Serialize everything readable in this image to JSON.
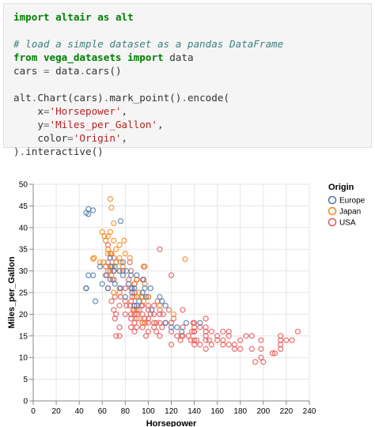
{
  "code": {
    "lines": [
      [
        {
          "t": "import",
          "c": "kw"
        },
        {
          "t": " "
        },
        {
          "t": "altair",
          "c": "kw"
        },
        {
          "t": " "
        },
        {
          "t": "as",
          "c": "kw"
        },
        {
          "t": " "
        },
        {
          "t": "alt",
          "c": "kw"
        }
      ],
      [],
      [
        {
          "t": "# load a simple dataset as a pandas DataFrame",
          "c": "cm"
        }
      ],
      [
        {
          "t": "from",
          "c": "kw"
        },
        {
          "t": " "
        },
        {
          "t": "vega_datasets",
          "c": "kw"
        },
        {
          "t": " "
        },
        {
          "t": "import",
          "c": "kw"
        },
        {
          "t": " data"
        }
      ],
      [
        {
          "t": "cars "
        },
        {
          "t": "=",
          "c": "op"
        },
        {
          "t": " data"
        },
        {
          "t": ".",
          "c": "op"
        },
        {
          "t": "cars()"
        }
      ],
      [],
      [
        {
          "t": "alt"
        },
        {
          "t": ".",
          "c": "op"
        },
        {
          "t": "Chart(cars)"
        },
        {
          "t": ".",
          "c": "op"
        },
        {
          "t": "mark_point()"
        },
        {
          "t": ".",
          "c": "op"
        },
        {
          "t": "encode("
        }
      ],
      [
        {
          "t": "    x"
        },
        {
          "t": "=",
          "c": "op"
        },
        {
          "t": "'Horsepower'",
          "c": "st"
        },
        {
          "t": ","
        }
      ],
      [
        {
          "t": "    y"
        },
        {
          "t": "=",
          "c": "op"
        },
        {
          "t": "'Miles_per_Gallon'",
          "c": "st"
        },
        {
          "t": ","
        }
      ],
      [
        {
          "t": "    color"
        },
        {
          "t": "=",
          "c": "op"
        },
        {
          "t": "'Origin'",
          "c": "st"
        },
        {
          "t": ","
        }
      ],
      [
        {
          "t": ")"
        },
        {
          "t": ".",
          "c": "op"
        },
        {
          "t": "interactive()"
        }
      ]
    ]
  },
  "chart_data": {
    "type": "scatter",
    "xlabel": "Horsepower",
    "ylabel": "Miles_per_Gallon",
    "xlim": [
      0,
      240
    ],
    "ylim": [
      0,
      50
    ],
    "xticks": [
      0,
      20,
      40,
      60,
      80,
      100,
      120,
      140,
      160,
      180,
      200,
      220,
      240
    ],
    "yticks": [
      0,
      5,
      10,
      15,
      20,
      25,
      30,
      35,
      40,
      45,
      50
    ],
    "grid": true,
    "legend": {
      "title": "Origin",
      "placement": "top-right"
    },
    "series": [
      {
        "name": "Europe",
        "color": "#4c78a8",
        "points": [
          [
            46,
            26
          ],
          [
            46,
            26
          ],
          [
            46,
            43.4
          ],
          [
            48,
            43.1
          ],
          [
            48,
            44.3
          ],
          [
            48,
            29
          ],
          [
            52,
            44
          ],
          [
            52,
            29
          ],
          [
            54,
            23
          ],
          [
            58,
            31
          ],
          [
            60,
            27
          ],
          [
            63,
            29
          ],
          [
            65,
            26
          ],
          [
            67,
            33
          ],
          [
            67,
            28
          ],
          [
            68,
            31
          ],
          [
            70,
            30
          ],
          [
            71,
            27
          ],
          [
            71,
            31
          ],
          [
            76,
            41.5
          ],
          [
            76,
            26
          ],
          [
            78,
            32
          ],
          [
            78,
            29
          ],
          [
            80,
            24
          ],
          [
            81,
            30
          ],
          [
            83,
            27
          ],
          [
            85,
            29
          ],
          [
            86,
            25
          ],
          [
            88,
            26
          ],
          [
            88,
            22
          ],
          [
            90,
            29
          ],
          [
            92,
            23
          ],
          [
            95,
            25
          ],
          [
            96,
            28
          ],
          [
            97,
            26
          ],
          [
            98,
            24
          ],
          [
            102,
            26
          ],
          [
            103,
            21
          ],
          [
            110,
            24
          ],
          [
            112,
            23
          ],
          [
            115,
            22
          ],
          [
            115,
            18
          ],
          [
            120,
            17
          ],
          [
            125,
            17
          ],
          [
            129,
            16
          ],
          [
            133,
            18
          ],
          [
            145,
            18
          ],
          [
            90,
            22
          ],
          [
            86,
            26
          ],
          [
            75,
            30
          ]
        ]
      },
      {
        "name": "Japan",
        "color": "#f58518",
        "points": [
          [
            52,
            32.8
          ],
          [
            53,
            33
          ],
          [
            58,
            32
          ],
          [
            60,
            39
          ],
          [
            61,
            32
          ],
          [
            62,
            38
          ],
          [
            63,
            37
          ],
          [
            65,
            35
          ],
          [
            65,
            38
          ],
          [
            67,
            34
          ],
          [
            67,
            46.6
          ],
          [
            67,
            39
          ],
          [
            68,
            44.6
          ],
          [
            68,
            34
          ],
          [
            68,
            29
          ],
          [
            69,
            31
          ],
          [
            70,
            37
          ],
          [
            70,
            41
          ],
          [
            72,
            32
          ],
          [
            72,
            35
          ],
          [
            75,
            33
          ],
          [
            75,
            36
          ],
          [
            75,
            30
          ],
          [
            76,
            32
          ],
          [
            78,
            31
          ],
          [
            80,
            34
          ],
          [
            84,
            33
          ],
          [
            88,
            24
          ],
          [
            88,
            27
          ],
          [
            90,
            28
          ],
          [
            92,
            25
          ],
          [
            94,
            24
          ],
          [
            95,
            24
          ],
          [
            96,
            23
          ],
          [
            97,
            31
          ],
          [
            97,
            27
          ],
          [
            100,
            24
          ],
          [
            110,
            22
          ],
          [
            122,
            20
          ],
          [
            132,
            32.7
          ],
          [
            97,
            18
          ],
          [
            75,
            25
          ],
          [
            79,
            37
          ],
          [
            65,
            34
          ],
          [
            65,
            30
          ],
          [
            67,
            31
          ],
          [
            70,
            25
          ],
          [
            88,
            21
          ],
          [
            92,
            19
          ],
          [
            72,
            32
          ]
        ]
      },
      {
        "name": "USA",
        "color": "#e45756",
        "points": [
          [
            230,
            16
          ],
          [
            225,
            14
          ],
          [
            220,
            14
          ],
          [
            215,
            14
          ],
          [
            215,
            12
          ],
          [
            215,
            13
          ],
          [
            210,
            11
          ],
          [
            208,
            11
          ],
          [
            200,
            9
          ],
          [
            198,
            10
          ],
          [
            198,
            12
          ],
          [
            193,
            9
          ],
          [
            190,
            12
          ],
          [
            190,
            15
          ],
          [
            180,
            12
          ],
          [
            180,
            14
          ],
          [
            175,
            13
          ],
          [
            175,
            12
          ],
          [
            170,
            13
          ],
          [
            170,
            15
          ],
          [
            165,
            13
          ],
          [
            165,
            14
          ],
          [
            160,
            14
          ],
          [
            160,
            15
          ],
          [
            155,
            13
          ],
          [
            153,
            14
          ],
          [
            150,
            12
          ],
          [
            150,
            15
          ],
          [
            150,
            16
          ],
          [
            150,
            17
          ],
          [
            145,
            13
          ],
          [
            145,
            17
          ],
          [
            142,
            14
          ],
          [
            140,
            13
          ],
          [
            140,
            14
          ],
          [
            140,
            16
          ],
          [
            140,
            17
          ],
          [
            140,
            18
          ],
          [
            139,
            18
          ],
          [
            138,
            16
          ],
          [
            137,
            14
          ],
          [
            135,
            15
          ],
          [
            130,
            15
          ],
          [
            130,
            17
          ],
          [
            129,
            15
          ],
          [
            128,
            14
          ],
          [
            125,
            15
          ],
          [
            120,
            13
          ],
          [
            120,
            16
          ],
          [
            120,
            18
          ],
          [
            115,
            18
          ],
          [
            112,
            17
          ],
          [
            110,
            18
          ],
          [
            110,
            20
          ],
          [
            110,
            21
          ],
          [
            110,
            15
          ],
          [
            107,
            16
          ],
          [
            107,
            18
          ],
          [
            105,
            18
          ],
          [
            105,
            20
          ],
          [
            105,
            22
          ],
          [
            105,
            17
          ],
          [
            100,
            16
          ],
          [
            100,
            18
          ],
          [
            100,
            19
          ],
          [
            100,
            21
          ],
          [
            100,
            22
          ],
          [
            100,
            24
          ],
          [
            98,
            15
          ],
          [
            97,
            18
          ],
          [
            97,
            19
          ],
          [
            95,
            17
          ],
          [
            95,
            18
          ],
          [
            95,
            20
          ],
          [
            95,
            22
          ],
          [
            95,
            28
          ],
          [
            92,
            21
          ],
          [
            90,
            17
          ],
          [
            90,
            19
          ],
          [
            90,
            20
          ],
          [
            90,
            21
          ],
          [
            90,
            24
          ],
          [
            90,
            28
          ],
          [
            88,
            16
          ],
          [
            88,
            18
          ],
          [
            88,
            20
          ],
          [
            88,
            22
          ],
          [
            88,
            25
          ],
          [
            88,
            27
          ],
          [
            87,
            21
          ],
          [
            86,
            24
          ],
          [
            85,
            17
          ],
          [
            85,
            19
          ],
          [
            85,
            20
          ],
          [
            85,
            23
          ],
          [
            85,
            26
          ],
          [
            85,
            30
          ],
          [
            84,
            22
          ],
          [
            84,
            32
          ],
          [
            83,
            28
          ],
          [
            81,
            22
          ],
          [
            80,
            20
          ],
          [
            80,
            23
          ],
          [
            80,
            26
          ],
          [
            78,
            30
          ],
          [
            76,
            24
          ],
          [
            75,
            15
          ],
          [
            75,
            17
          ],
          [
            75,
            22
          ],
          [
            75,
            26
          ],
          [
            72,
            15
          ],
          [
            72,
            20
          ],
          [
            71,
            19
          ],
          [
            71,
            24
          ],
          [
            70,
            28
          ],
          [
            70,
            30
          ],
          [
            70,
            33
          ],
          [
            69,
            28
          ],
          [
            68,
            34
          ],
          [
            68,
            23
          ],
          [
            67,
            30
          ],
          [
            65,
            26
          ],
          [
            65,
            36
          ],
          [
            65,
            32
          ],
          [
            64,
            29
          ],
          [
            63,
            31
          ],
          [
            70,
            21
          ],
          [
            94,
            22
          ],
          [
            102,
            20
          ],
          [
            113,
            20
          ],
          [
            118,
            21
          ],
          [
            122,
            19
          ],
          [
            150,
            19
          ],
          [
            108,
            23
          ],
          [
            96,
            31
          ],
          [
            110,
            35
          ],
          [
            120,
            29
          ],
          [
            140,
            16
          ],
          [
            155,
            16
          ],
          [
            165,
            16
          ],
          [
            170,
            16
          ],
          [
            185,
            15
          ],
          [
            198,
            14
          ],
          [
            215,
            15
          ],
          [
            130,
            21
          ],
          [
            150,
            14
          ]
        ]
      }
    ]
  }
}
